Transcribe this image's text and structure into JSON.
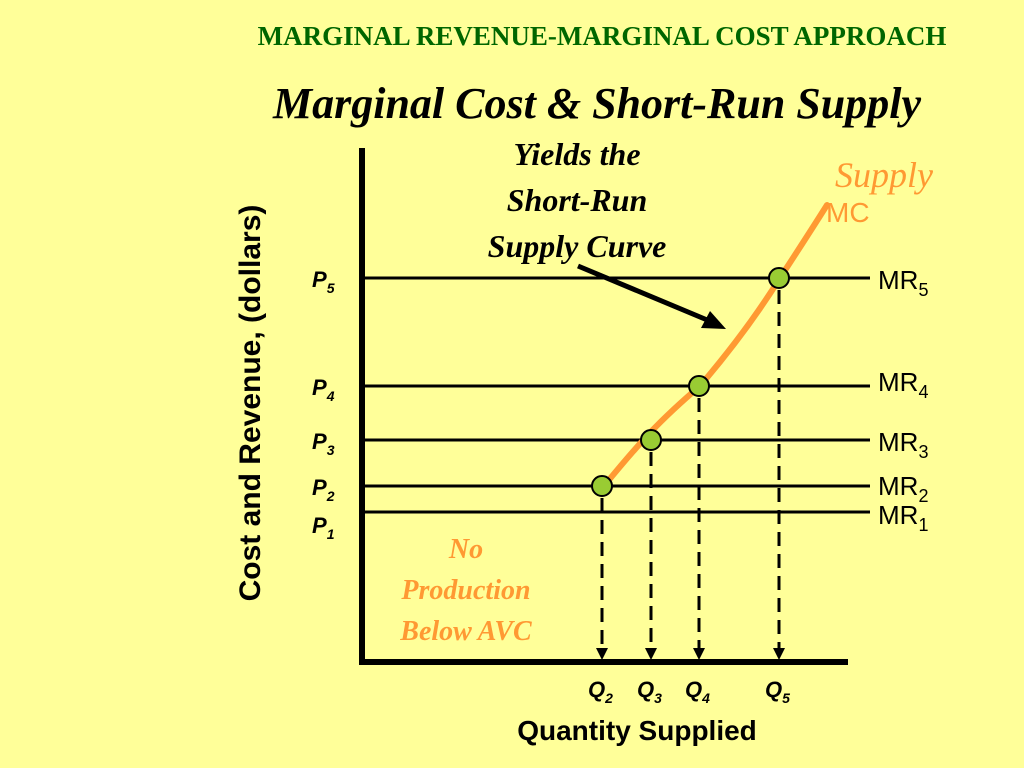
{
  "header": {
    "section_title": "MARGINAL REVENUE-MARGINAL COST APPROACH",
    "slide_title": "Marginal Cost & Short-Run Supply"
  },
  "colors": {
    "background": "#ffff99",
    "section_title": "#006600",
    "supply_curve": "#ff9933",
    "points": "#99cc33",
    "no_production": "#ff9933",
    "axes": "#000000"
  },
  "axes": {
    "y_label": "Cost and Revenue, (dollars)",
    "x_label": "Quantity Supplied"
  },
  "price_levels": [
    {
      "base": "P",
      "sub": "5",
      "mr_base": "MR",
      "mr_sub": "5"
    },
    {
      "base": "P",
      "sub": "4",
      "mr_base": "MR",
      "mr_sub": "4"
    },
    {
      "base": "P",
      "sub": "3",
      "mr_base": "MR",
      "mr_sub": "3"
    },
    {
      "base": "P",
      "sub": "2",
      "mr_base": "MR",
      "mr_sub": "2"
    },
    {
      "base": "P",
      "sub": "1",
      "mr_base": "MR",
      "mr_sub": "1"
    }
  ],
  "quantities": [
    {
      "base": "Q",
      "sub": "2"
    },
    {
      "base": "Q",
      "sub": "3"
    },
    {
      "base": "Q",
      "sub": "4"
    },
    {
      "base": "Q",
      "sub": "5"
    }
  ],
  "annotations": {
    "yields": [
      "Yields the",
      "Short-Run",
      "Supply Curve"
    ],
    "supply_label": "Supply",
    "mc_label": "MC",
    "no_production": [
      "No",
      "Production",
      "Below AVC"
    ]
  }
}
